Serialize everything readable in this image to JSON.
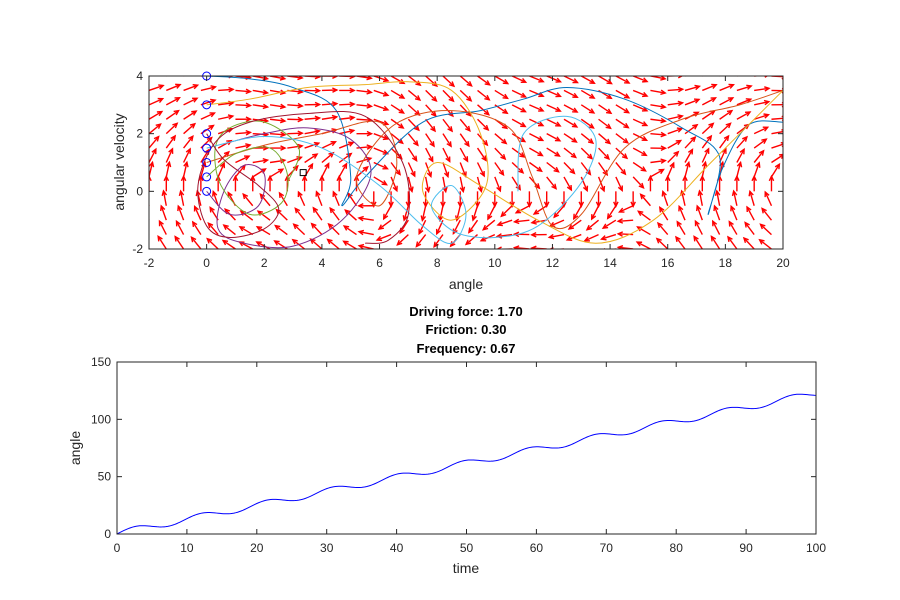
{
  "chart_data": [
    {
      "type": "line",
      "panel": "phase-portrait",
      "xlabel": "angle",
      "ylabel": "angular velocity",
      "xlim": [
        -2,
        20
      ],
      "ylim": [
        -2,
        4
      ],
      "x_ticks": [
        -2,
        0,
        2,
        4,
        6,
        8,
        10,
        12,
        14,
        16,
        18,
        20
      ],
      "y_ticks": [
        -2,
        0,
        2,
        4
      ],
      "grid": false,
      "quiver": {
        "color": "#ff0000",
        "description": "direction field arrows"
      },
      "initial_conditions": {
        "marker": "circle",
        "color": "#0000ff",
        "points": [
          [
            0,
            0
          ],
          [
            0,
            0.5
          ],
          [
            0,
            1
          ],
          [
            0,
            1.5
          ],
          [
            0,
            2
          ],
          [
            0,
            3
          ],
          [
            0,
            4
          ]
        ]
      },
      "end_marker": {
        "marker": "square",
        "point": [
          3.35,
          0.65
        ]
      },
      "series": [
        {
          "color": "#0072bd",
          "x": [
            0,
            1.5,
            3.0,
            4.5,
            5.0,
            4.7,
            5.5,
            7.5,
            9.5,
            11.0,
            12.5,
            14.5,
            16.5,
            17.8,
            17.4,
            17.9,
            18.8,
            20
          ],
          "y": [
            4,
            3.9,
            3.6,
            2.8,
            0.5,
            -0.5,
            0.5,
            2.4,
            2.8,
            3.2,
            3.6,
            3.2,
            2.2,
            1.2,
            -0.8,
            0.8,
            2.3,
            2.4
          ]
        },
        {
          "color": "#d95319",
          "x": [
            0,
            2,
            4,
            6,
            6.6,
            6.0,
            5.2,
            6.5,
            8.5,
            10.5,
            11.3,
            12.0,
            13.0,
            14.5,
            16.5,
            18.5,
            20
          ],
          "y": [
            1,
            1.6,
            2.0,
            2.4,
            1.0,
            -0.5,
            0.5,
            2.3,
            2.8,
            2.2,
            0.5,
            -1.2,
            -0.8,
            1.5,
            2.5,
            3.0,
            3.5
          ]
        },
        {
          "color": "#edb120",
          "x": [
            0,
            1.5,
            3.5,
            5.5,
            7.0,
            8.5,
            9.5,
            9.7,
            8.5,
            7.5,
            8.0,
            9.5,
            11.5,
            13.5,
            15.5,
            17.5,
            20
          ],
          "y": [
            3,
            3.2,
            3.6,
            3.7,
            3.8,
            3.5,
            2.0,
            0.2,
            -1.0,
            0.0,
            1.0,
            0.2,
            -1.0,
            -1.8,
            -1.0,
            1.0,
            3.5
          ]
        },
        {
          "color": "#7e2f8e",
          "x": [
            0,
            0.8,
            1.8,
            2.0,
            1.3,
            0.6,
            0.4,
            1.3,
            3.0,
            4.7,
            5.7,
            5.0,
            3.5,
            2.0,
            0.8
          ],
          "y": [
            0,
            -0.8,
            -0.5,
            0.6,
            0.9,
            0.0,
            -1.3,
            -1.8,
            -1.9,
            -1.0,
            0.6,
            1.8,
            2.2,
            2.0,
            1.7
          ]
        },
        {
          "color": "#77ac30",
          "x": [
            0,
            1.0,
            2.2,
            2.8,
            2.6,
            1.5,
            0.5,
            0.3,
            0.8,
            2.0,
            3.2,
            2.8
          ],
          "y": [
            0.5,
            1.3,
            1.5,
            0.6,
            -0.4,
            -0.8,
            0.2,
            1.5,
            2.2,
            2.4,
            1.5,
            0.3
          ]
        },
        {
          "color": "#4dbeee",
          "x": [
            0,
            2,
            4,
            6,
            7.5,
            8.5,
            9.0,
            8.5,
            7.8,
            8.6,
            10.0,
            11.5,
            13.0,
            13.5,
            12.5,
            11.0,
            10.8
          ],
          "y": [
            1.5,
            1.9,
            1.5,
            0.2,
            -1.2,
            -1.8,
            -0.8,
            0.2,
            -0.5,
            -1.4,
            -1.6,
            -1.2,
            0.3,
            1.8,
            2.6,
            2.0,
            0.0
          ]
        },
        {
          "color": "#a2142f",
          "x": [
            0,
            0.6,
            1.8,
            2.5,
            2.0,
            0.8,
            0.0,
            -0.3,
            0.3,
            1.5,
            3.5,
            5.5,
            6.8,
            7.0,
            6.3,
            5.5
          ],
          "y": [
            2,
            1.1,
            0.2,
            -0.6,
            -1.3,
            -1.6,
            -1.2,
            0.2,
            1.7,
            2.4,
            2.7,
            2.6,
            1.0,
            -0.8,
            -1.7,
            -1.8
          ]
        }
      ]
    },
    {
      "type": "line",
      "panel": "time-series",
      "title_lines": [
        "Driving force: 1.70",
        "Friction: 0.30",
        "Frequency: 0.67"
      ],
      "xlabel": "time",
      "ylabel": "angle",
      "xlim": [
        0,
        100
      ],
      "ylim": [
        0,
        150
      ],
      "x_ticks": [
        0,
        10,
        20,
        30,
        40,
        50,
        60,
        70,
        80,
        90,
        100
      ],
      "y_ticks": [
        0,
        50,
        100,
        150
      ],
      "grid": false,
      "series": [
        {
          "color": "#0000ff",
          "trend_per_time": 1.22,
          "oscillation_amplitude": 2.8,
          "oscillation_period": 9.4,
          "t_end": 100,
          "angle_end": 131
        }
      ]
    }
  ]
}
